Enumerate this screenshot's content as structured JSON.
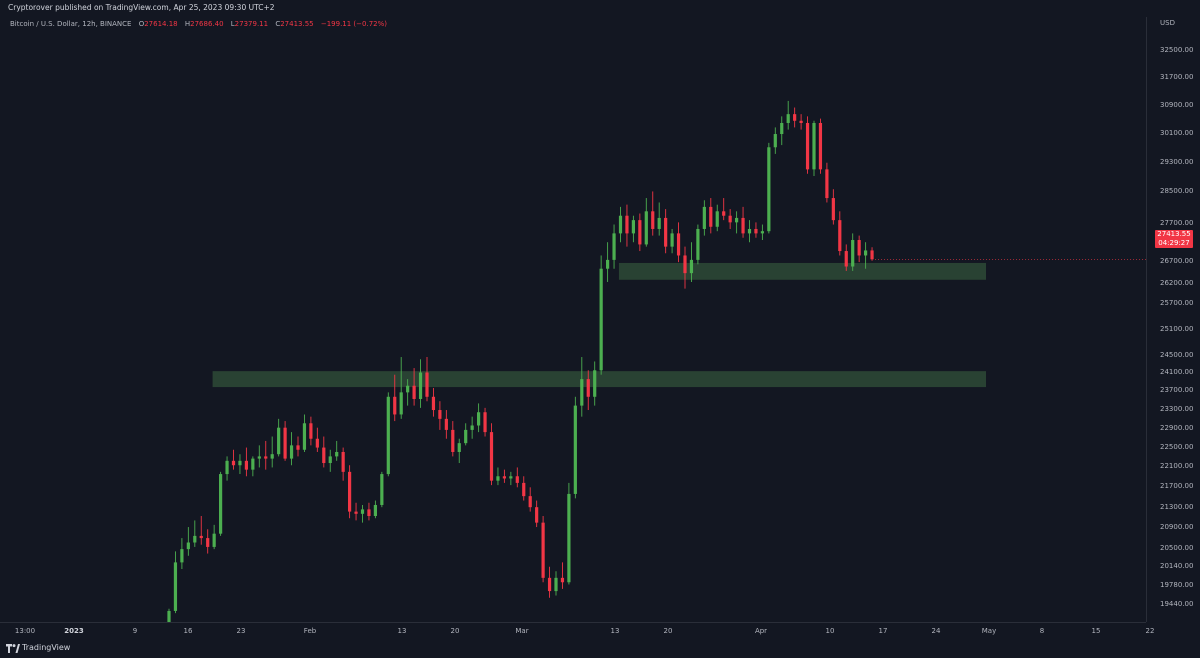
{
  "header": {
    "publisher_line": "Cryptorover published on TradingView.com, Apr 25, 2023 09:30 UTC+2",
    "symbol": "Bitcoin / U.S. Dollar, 12h, BINANCE",
    "ohlc": {
      "o_label": "O",
      "o_value": "27614.18",
      "h_label": "H",
      "h_value": "27686.40",
      "l_label": "L",
      "l_value": "27379.11",
      "c_label": "C",
      "c_value": "27413.55",
      "change": "−199.11 (−0.72%)"
    }
  },
  "price_axis": {
    "currency": "USD",
    "ticks": [
      "32500.00",
      "31700.00",
      "30900.00",
      "30100.00",
      "29300.00",
      "28500.00",
      "27700.00",
      "26700.00",
      "26200.00",
      "25700.00",
      "25100.00",
      "24500.00",
      "24100.00",
      "23700.00",
      "23300.00",
      "22900.00",
      "22500.00",
      "22100.00",
      "21700.00",
      "21300.00",
      "20900.00",
      "20500.00",
      "20140.00",
      "19780.00",
      "19440.00"
    ]
  },
  "time_axis": {
    "ticks": [
      {
        "label": "13:00",
        "bold": false
      },
      {
        "label": "2023",
        "bold": true
      },
      {
        "label": "9",
        "bold": false
      },
      {
        "label": "16",
        "bold": false
      },
      {
        "label": "23",
        "bold": false
      },
      {
        "label": "Feb",
        "bold": false
      },
      {
        "label": "13",
        "bold": false
      },
      {
        "label": "20",
        "bold": false
      },
      {
        "label": "Mar",
        "bold": false
      },
      {
        "label": "13",
        "bold": false
      },
      {
        "label": "20",
        "bold": false
      },
      {
        "label": "Apr",
        "bold": false
      },
      {
        "label": "10",
        "bold": false
      },
      {
        "label": "17",
        "bold": false
      },
      {
        "label": "24",
        "bold": false
      },
      {
        "label": "May",
        "bold": false
      },
      {
        "label": "8",
        "bold": false
      },
      {
        "label": "15",
        "bold": false
      },
      {
        "label": "22",
        "bold": false
      }
    ]
  },
  "last_price": {
    "price": "27413.55",
    "countdown": "04:29:27"
  },
  "footer": {
    "brand": "TradingView"
  },
  "colors": {
    "background": "#131722",
    "up": "#26a69a",
    "up_body": "#4caf50",
    "down": "#f23645",
    "zone": "#2e4a36"
  },
  "chart_data": {
    "type": "candlestick",
    "title": "",
    "interval": "12h",
    "ylim": [
      19200,
      32900
    ],
    "xlabel": "",
    "ylabel": "",
    "grid": false,
    "zones": [
      {
        "from_index": 8,
        "to_index": 126,
        "y_low": 24520,
        "y_high": 24880
      },
      {
        "from_index": 71,
        "to_index": 126,
        "y_low": 26950,
        "y_high": 27330
      }
    ],
    "candles": [
      {
        "o": 19000,
        "h": 19500,
        "l": 18900,
        "c": 19450
      },
      {
        "o": 19450,
        "h": 20800,
        "l": 19400,
        "c": 20550
      },
      {
        "o": 20550,
        "h": 21100,
        "l": 20400,
        "c": 20850
      },
      {
        "o": 20850,
        "h": 21350,
        "l": 20700,
        "c": 21000
      },
      {
        "o": 21000,
        "h": 21500,
        "l": 20900,
        "c": 21150
      },
      {
        "o": 21150,
        "h": 21600,
        "l": 20950,
        "c": 21100
      },
      {
        "o": 21100,
        "h": 21300,
        "l": 20750,
        "c": 20900
      },
      {
        "o": 20900,
        "h": 21400,
        "l": 20850,
        "c": 21200
      },
      {
        "o": 21200,
        "h": 22600,
        "l": 21150,
        "c": 22550
      },
      {
        "o": 22550,
        "h": 22950,
        "l": 22400,
        "c": 22850
      },
      {
        "o": 22850,
        "h": 23100,
        "l": 22650,
        "c": 22750
      },
      {
        "o": 22750,
        "h": 23000,
        "l": 22550,
        "c": 22850
      },
      {
        "o": 22850,
        "h": 23150,
        "l": 22500,
        "c": 22650
      },
      {
        "o": 22650,
        "h": 22950,
        "l": 22500,
        "c": 22900
      },
      {
        "o": 22900,
        "h": 23200,
        "l": 22700,
        "c": 22950
      },
      {
        "o": 22950,
        "h": 23300,
        "l": 22650,
        "c": 22900
      },
      {
        "o": 22900,
        "h": 23400,
        "l": 22700,
        "c": 23000
      },
      {
        "o": 23000,
        "h": 23800,
        "l": 22950,
        "c": 23600
      },
      {
        "o": 23600,
        "h": 23750,
        "l": 22850,
        "c": 22900
      },
      {
        "o": 22900,
        "h": 23500,
        "l": 22750,
        "c": 23200
      },
      {
        "o": 23200,
        "h": 23400,
        "l": 22950,
        "c": 23100
      },
      {
        "o": 23100,
        "h": 23900,
        "l": 23050,
        "c": 23700
      },
      {
        "o": 23700,
        "h": 23850,
        "l": 23200,
        "c": 23350
      },
      {
        "o": 23350,
        "h": 23600,
        "l": 23050,
        "c": 23150
      },
      {
        "o": 23150,
        "h": 23400,
        "l": 22700,
        "c": 22800
      },
      {
        "o": 22800,
        "h": 23100,
        "l": 22600,
        "c": 22950
      },
      {
        "o": 22950,
        "h": 23300,
        "l": 22850,
        "c": 23050
      },
      {
        "o": 23050,
        "h": 23150,
        "l": 22400,
        "c": 22600
      },
      {
        "o": 22600,
        "h": 22750,
        "l": 21550,
        "c": 21700
      },
      {
        "o": 21700,
        "h": 21900,
        "l": 21500,
        "c": 21650
      },
      {
        "o": 21650,
        "h": 21850,
        "l": 21450,
        "c": 21750
      },
      {
        "o": 21750,
        "h": 21900,
        "l": 21500,
        "c": 21600
      },
      {
        "o": 21600,
        "h": 21950,
        "l": 21550,
        "c": 21850
      },
      {
        "o": 21850,
        "h": 22600,
        "l": 21800,
        "c": 22550
      },
      {
        "o": 22550,
        "h": 24400,
        "l": 22500,
        "c": 24300
      },
      {
        "o": 24300,
        "h": 24800,
        "l": 23750,
        "c": 23900
      },
      {
        "o": 23900,
        "h": 25200,
        "l": 23800,
        "c": 24400
      },
      {
        "o": 24400,
        "h": 24700,
        "l": 24100,
        "c": 24550
      },
      {
        "o": 24550,
        "h": 24950,
        "l": 24100,
        "c": 24250
      },
      {
        "o": 24250,
        "h": 25150,
        "l": 24050,
        "c": 24850
      },
      {
        "o": 24850,
        "h": 25200,
        "l": 24200,
        "c": 24300
      },
      {
        "o": 24300,
        "h": 24500,
        "l": 23850,
        "c": 24000
      },
      {
        "o": 24000,
        "h": 24200,
        "l": 23550,
        "c": 23800
      },
      {
        "o": 23800,
        "h": 24000,
        "l": 23350,
        "c": 23550
      },
      {
        "o": 23550,
        "h": 23750,
        "l": 22950,
        "c": 23050
      },
      {
        "o": 23050,
        "h": 23350,
        "l": 22800,
        "c": 23250
      },
      {
        "o": 23250,
        "h": 23700,
        "l": 23200,
        "c": 23550
      },
      {
        "o": 23550,
        "h": 23850,
        "l": 23350,
        "c": 23650
      },
      {
        "o": 23650,
        "h": 24150,
        "l": 23500,
        "c": 23950
      },
      {
        "o": 23950,
        "h": 24050,
        "l": 23400,
        "c": 23500
      },
      {
        "o": 23500,
        "h": 23700,
        "l": 22300,
        "c": 22400
      },
      {
        "o": 22400,
        "h": 22700,
        "l": 22300,
        "c": 22500
      },
      {
        "o": 22500,
        "h": 22650,
        "l": 22350,
        "c": 22450
      },
      {
        "o": 22450,
        "h": 22600,
        "l": 22300,
        "c": 22500
      },
      {
        "o": 22500,
        "h": 22700,
        "l": 22250,
        "c": 22350
      },
      {
        "o": 22350,
        "h": 22500,
        "l": 21950,
        "c": 22050
      },
      {
        "o": 22050,
        "h": 22250,
        "l": 21700,
        "c": 21800
      },
      {
        "o": 21800,
        "h": 21950,
        "l": 21350,
        "c": 21450
      },
      {
        "o": 21450,
        "h": 21600,
        "l": 20100,
        "c": 20200
      },
      {
        "o": 20200,
        "h": 20450,
        "l": 19750,
        "c": 19900
      },
      {
        "o": 19900,
        "h": 20350,
        "l": 19800,
        "c": 20200
      },
      {
        "o": 20200,
        "h": 20550,
        "l": 19950,
        "c": 20100
      },
      {
        "o": 20100,
        "h": 22350,
        "l": 20050,
        "c": 22100
      },
      {
        "o": 22100,
        "h": 24300,
        "l": 22000,
        "c": 24100
      },
      {
        "o": 24100,
        "h": 25200,
        "l": 23850,
        "c": 24700
      },
      {
        "o": 24700,
        "h": 24900,
        "l": 24000,
        "c": 24300
      },
      {
        "o": 24300,
        "h": 25100,
        "l": 24100,
        "c": 24900
      },
      {
        "o": 24900,
        "h": 27500,
        "l": 24800,
        "c": 27200
      },
      {
        "o": 27200,
        "h": 27800,
        "l": 26900,
        "c": 27400
      },
      {
        "o": 27400,
        "h": 28200,
        "l": 27200,
        "c": 28000
      },
      {
        "o": 28000,
        "h": 28600,
        "l": 27800,
        "c": 28400
      },
      {
        "o": 28400,
        "h": 28650,
        "l": 27700,
        "c": 28000
      },
      {
        "o": 28000,
        "h": 28400,
        "l": 27800,
        "c": 28300
      },
      {
        "o": 28300,
        "h": 28450,
        "l": 27600,
        "c": 27750
      },
      {
        "o": 27750,
        "h": 28800,
        "l": 27700,
        "c": 28500
      },
      {
        "o": 28500,
        "h": 28950,
        "l": 27950,
        "c": 28100
      },
      {
        "o": 28100,
        "h": 28700,
        "l": 27950,
        "c": 28350
      },
      {
        "o": 28350,
        "h": 28550,
        "l": 27550,
        "c": 27700
      },
      {
        "o": 27700,
        "h": 28100,
        "l": 27550,
        "c": 28000
      },
      {
        "o": 28000,
        "h": 28250,
        "l": 27350,
        "c": 27500
      },
      {
        "o": 27500,
        "h": 27700,
        "l": 26750,
        "c": 27100
      },
      {
        "o": 27100,
        "h": 27800,
        "l": 26900,
        "c": 27400
      },
      {
        "o": 27400,
        "h": 28200,
        "l": 27300,
        "c": 28100
      },
      {
        "o": 28100,
        "h": 28750,
        "l": 27950,
        "c": 28600
      },
      {
        "o": 28600,
        "h": 28800,
        "l": 28000,
        "c": 28150
      },
      {
        "o": 28150,
        "h": 28650,
        "l": 28050,
        "c": 28500
      },
      {
        "o": 28500,
        "h": 28800,
        "l": 28300,
        "c": 28400
      },
      {
        "o": 28400,
        "h": 28550,
        "l": 28100,
        "c": 28250
      },
      {
        "o": 28250,
        "h": 28500,
        "l": 28000,
        "c": 28350
      },
      {
        "o": 28350,
        "h": 28600,
        "l": 27900,
        "c": 28000
      },
      {
        "o": 28000,
        "h": 28300,
        "l": 27800,
        "c": 28100
      },
      {
        "o": 28100,
        "h": 28250,
        "l": 27900,
        "c": 28000
      },
      {
        "o": 28000,
        "h": 28200,
        "l": 27850,
        "c": 28050
      },
      {
        "o": 28050,
        "h": 30050,
        "l": 28000,
        "c": 29950
      },
      {
        "o": 29950,
        "h": 30400,
        "l": 29800,
        "c": 30250
      },
      {
        "o": 30250,
        "h": 30650,
        "l": 30000,
        "c": 30500
      },
      {
        "o": 30500,
        "h": 31000,
        "l": 30350,
        "c": 30700
      },
      {
        "o": 30700,
        "h": 30850,
        "l": 30400,
        "c": 30550
      },
      {
        "o": 30550,
        "h": 30700,
        "l": 30350,
        "c": 30500
      },
      {
        "o": 30500,
        "h": 30650,
        "l": 29350,
        "c": 29450
      },
      {
        "o": 29450,
        "h": 30550,
        "l": 29300,
        "c": 30500
      },
      {
        "o": 30500,
        "h": 30600,
        "l": 29350,
        "c": 29450
      },
      {
        "o": 29450,
        "h": 29600,
        "l": 28700,
        "c": 28800
      },
      {
        "o": 28800,
        "h": 29000,
        "l": 28200,
        "c": 28300
      },
      {
        "o": 28300,
        "h": 28500,
        "l": 27500,
        "c": 27600
      },
      {
        "o": 27600,
        "h": 27750,
        "l": 27150,
        "c": 27250
      },
      {
        "o": 27250,
        "h": 28000,
        "l": 27150,
        "c": 27850
      },
      {
        "o": 27850,
        "h": 27950,
        "l": 27350,
        "c": 27500
      },
      {
        "o": 27500,
        "h": 27800,
        "l": 27200,
        "c": 27614
      },
      {
        "o": 27614,
        "h": 27686,
        "l": 27379,
        "c": 27413
      }
    ]
  }
}
